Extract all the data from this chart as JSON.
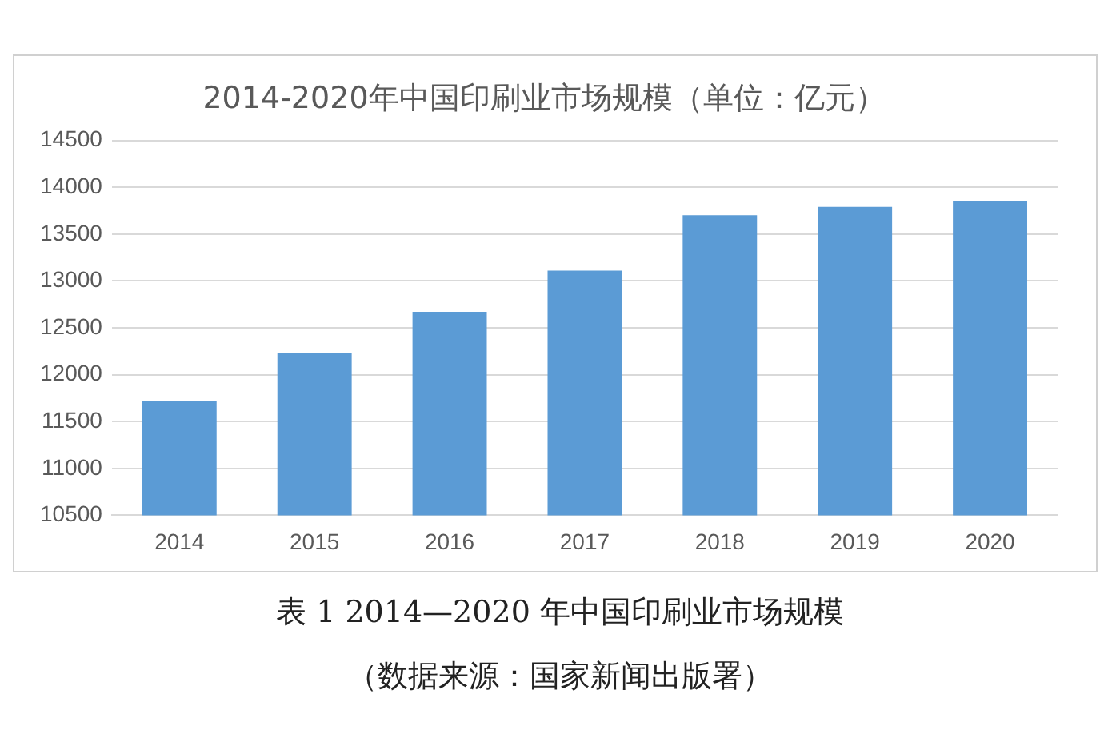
{
  "chart_data": {
    "type": "bar",
    "title": "2014-2020年中国印刷业市场规模（单位：亿元）",
    "categories": [
      "2014",
      "2015",
      "2016",
      "2017",
      "2018",
      "2019",
      "2020"
    ],
    "values": [
      11720,
      12230,
      12670,
      13110,
      13700,
      13790,
      13850
    ],
    "color": "#5b9bd5",
    "ylim": [
      10500,
      14500
    ],
    "yticks": [
      10500,
      11000,
      11500,
      12000,
      12500,
      13000,
      13500,
      14000,
      14500
    ],
    "grid": "y",
    "annotations": [
      "表 1   2014—2020 年中国印刷业市场规模",
      "（数据来源：国家新闻出版署）"
    ]
  }
}
